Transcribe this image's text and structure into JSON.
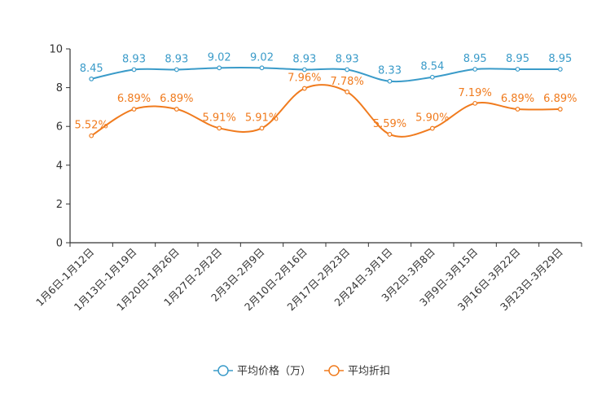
{
  "chart_data": {
    "type": "line",
    "title": "",
    "xlabel": "",
    "ylabel": "",
    "ylim": [
      0,
      10
    ],
    "yticks": [
      0,
      2,
      4,
      6,
      8,
      10
    ],
    "categories": [
      "1月6日-1月12日",
      "1月13日-1月19日",
      "1月20日-1月26日",
      "1月27日-2月2日",
      "2月3日-2月9日",
      "2月10日-2月16日",
      "2月17日-2月23日",
      "2月24日-3月1日",
      "3月2日-3月8日",
      "3月9日-3月15日",
      "3月16日-3月22日",
      "3月23日-3月29日"
    ],
    "series": [
      {
        "name": "平均价格（万）",
        "color": "#3a9bc9",
        "values": [
          8.45,
          8.93,
          8.93,
          9.02,
          9.02,
          8.93,
          8.93,
          8.33,
          8.54,
          8.95,
          8.95,
          8.95
        ],
        "labels": [
          "8.45",
          "8.93",
          "8.93",
          "9.02",
          "9.02",
          "8.93",
          "8.93",
          "8.33",
          "8.54",
          "8.95",
          "8.95",
          "8.95"
        ]
      },
      {
        "name": "平均折扣",
        "color": "#f07b1e",
        "values": [
          5.52,
          6.89,
          6.89,
          5.91,
          5.91,
          7.96,
          7.78,
          5.59,
          5.9,
          7.19,
          6.89,
          6.89
        ],
        "labels": [
          "5.52%",
          "6.89%",
          "6.89%",
          "5.91%",
          "5.91%",
          "7.96%",
          "7.78%",
          "5.59%",
          "5.90%",
          "7.19%",
          "6.89%",
          "6.89%"
        ]
      }
    ],
    "legend": "bottom-center"
  }
}
